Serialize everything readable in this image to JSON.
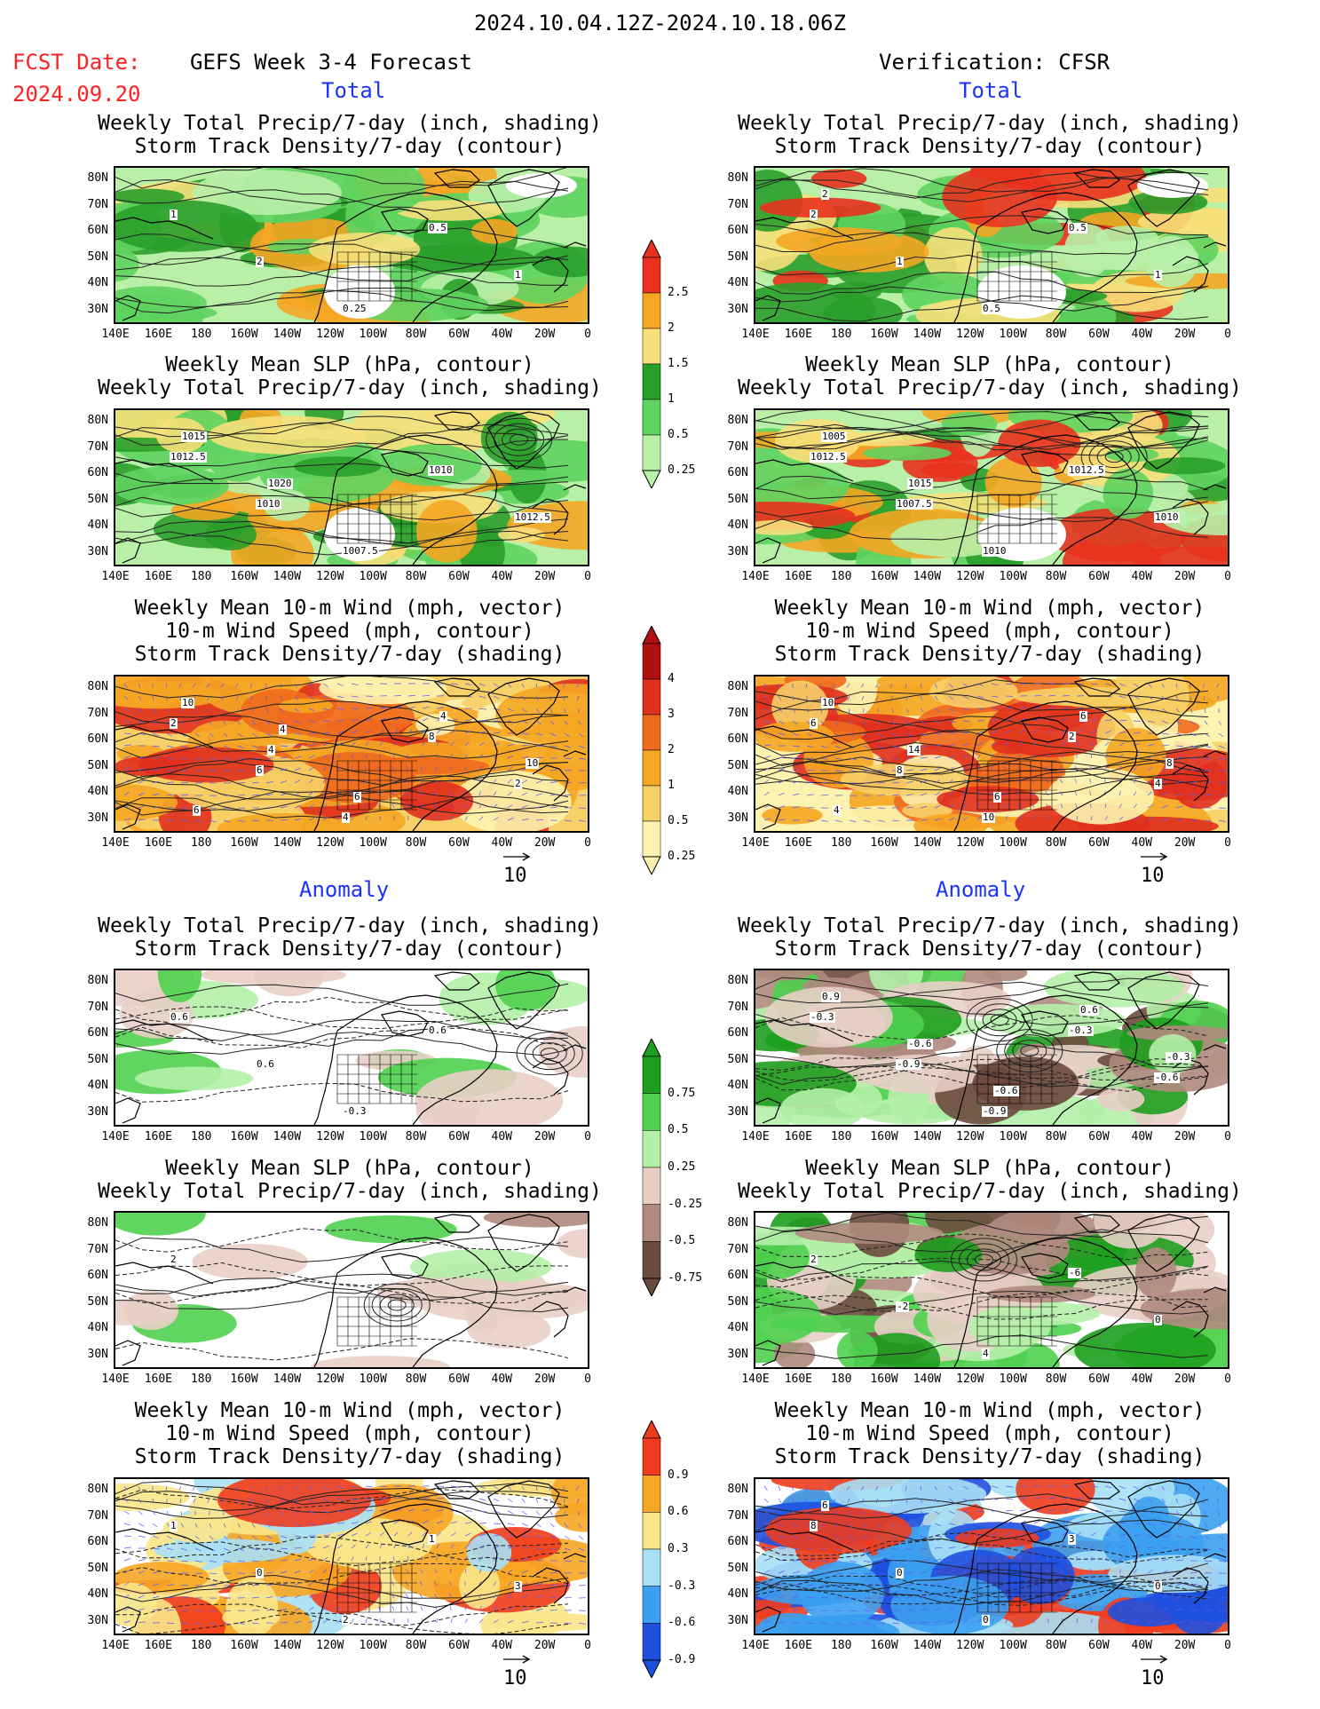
{
  "header": {
    "valid_period": "2024.10.04.12Z-2024.10.18.06Z",
    "fcst_date_label": "FCST Date:",
    "fcst_date": "2024.09.20",
    "forecast_title": "GEFS Week 3-4 Forecast",
    "verification_title": "Verification: CFSR"
  },
  "sections": {
    "total": "Total",
    "anomaly": "Anomaly"
  },
  "panel_titles": {
    "precip_storm": [
      "Weekly Total Precip/7-day (inch, shading)",
      "Storm Track Density/7-day (contour)"
    ],
    "slp_precip": [
      "Weekly Mean SLP (hPa, contour)",
      "Weekly Total Precip/7-day (inch, shading)"
    ],
    "wind_storm": [
      "Weekly Mean 10-m Wind (mph, vector)",
      "10-m Wind Speed (mph, contour)",
      "Storm Track Density/7-day (shading)"
    ]
  },
  "axes": {
    "lat_ticks": [
      "80N",
      "70N",
      "60N",
      "50N",
      "40N",
      "30N"
    ],
    "lon_ticks": [
      "140E",
      "160E",
      "180",
      "160W",
      "140W",
      "120W",
      "100W",
      "80W",
      "60W",
      "40W",
      "20W",
      "0"
    ]
  },
  "vector_reference": "10",
  "colorbars": {
    "total_precip": {
      "labels": [
        "2.5",
        "2",
        "1.5",
        "1",
        "0.5",
        "0.25"
      ],
      "colors": [
        "#e8321e",
        "#f5a623",
        "#f7e07a",
        "#2a9e2a",
        "#5fd35f",
        "#b8f0a8"
      ]
    },
    "total_storm": {
      "labels": [
        "4",
        "3",
        "2",
        "1",
        "0.5",
        "0.25"
      ],
      "colors": [
        "#b01010",
        "#e0301e",
        "#f06a1e",
        "#f5a623",
        "#f7d067",
        "#fdf3b0"
      ]
    },
    "anom_precip": {
      "labels": [
        "0.75",
        "0.5",
        "0.25",
        "-0.25",
        "-0.5",
        "-0.75"
      ],
      "colors": [
        "#1e9e1e",
        "#4fd04f",
        "#b4f0a8",
        "#e8cfc6",
        "#b08a7e",
        "#6b4a3e"
      ]
    },
    "anom_storm": {
      "labels": [
        "0.9",
        "0.6",
        "0.3",
        "-0.3",
        "-0.6",
        "-0.9"
      ],
      "colors": [
        "#f03c1e",
        "#f7a623",
        "#fbe58a",
        "#a8e0f5",
        "#3ca0f0",
        "#1e50e0"
      ]
    }
  },
  "panels": {
    "f_tot_1": {
      "contour_labels": [
        "1",
        "2",
        "0.25",
        "0.5",
        "1"
      ]
    },
    "v_tot_1": {
      "contour_labels": [
        "2",
        "1",
        "0.5",
        "0.5",
        "1",
        "2"
      ]
    },
    "f_tot_2": {
      "contour_labels": [
        "1012.5",
        "1010",
        "1007.5",
        "1010",
        "1012.5",
        "1015",
        "1020"
      ]
    },
    "v_tot_2": {
      "contour_labels": [
        "1012.5",
        "1007.5",
        "1010",
        "1012.5",
        "1010",
        "1005",
        "1015"
      ]
    },
    "f_tot_3": {
      "contour_labels": [
        "2",
        "6",
        "4",
        "8",
        "2",
        "10",
        "4",
        "6",
        "4",
        "10",
        "6",
        "4"
      ]
    },
    "v_tot_3": {
      "contour_labels": [
        "6",
        "8",
        "10",
        "2",
        "4",
        "10",
        "14",
        "6",
        "6",
        "8",
        "4"
      ]
    },
    "f_anom_1": {
      "contour_labels": [
        "0.6",
        "0.6",
        "-0.3",
        "0.6"
      ]
    },
    "v_anom_1": {
      "contour_labels": [
        "-0.3",
        "-0.9",
        "-0.9",
        "-0.3",
        "-0.6",
        "0.9",
        "-0.6",
        "-0.6",
        "0.6",
        "-0.3"
      ]
    },
    "f_anom_2": {
      "contour_labels": [
        "2"
      ]
    },
    "v_anom_2": {
      "contour_labels": [
        "2",
        "-2",
        "4",
        "-6",
        "0"
      ]
    },
    "f_anom_3": {
      "contour_labels": [
        "1",
        "0",
        "2",
        "1",
        "3"
      ]
    },
    "v_anom_3": {
      "contour_labels": [
        "8",
        "0",
        "0",
        "3",
        "0",
        "6"
      ]
    }
  }
}
